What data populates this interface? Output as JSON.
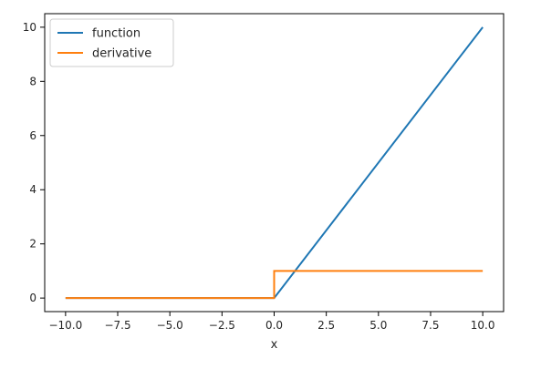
{
  "chart_data": {
    "type": "line",
    "title": "",
    "xlabel": "x",
    "ylabel": "",
    "xlim": [
      -11.0,
      11.0
    ],
    "ylim": [
      -0.5,
      10.5
    ],
    "xticks": [
      -10.0,
      -7.5,
      -5.0,
      -2.5,
      0.0,
      2.5,
      5.0,
      7.5,
      10.0
    ],
    "xtick_labels": [
      "−10.0",
      "−7.5",
      "−5.0",
      "−2.5",
      "0.0",
      "2.5",
      "5.0",
      "7.5",
      "10.0"
    ],
    "yticks": [
      0,
      2,
      4,
      6,
      8,
      10
    ],
    "ytick_labels": [
      "0",
      "2",
      "4",
      "6",
      "8",
      "10"
    ],
    "grid": false,
    "legend": "top-left",
    "series": [
      {
        "name": "function",
        "color": "#1f77b4",
        "x": [
          -10,
          0,
          10
        ],
        "y": [
          0,
          0,
          10
        ]
      },
      {
        "name": "derivative",
        "color": "#ff7f0e",
        "x": [
          -10,
          0,
          0,
          10
        ],
        "y": [
          0,
          0,
          1,
          1
        ]
      }
    ]
  }
}
